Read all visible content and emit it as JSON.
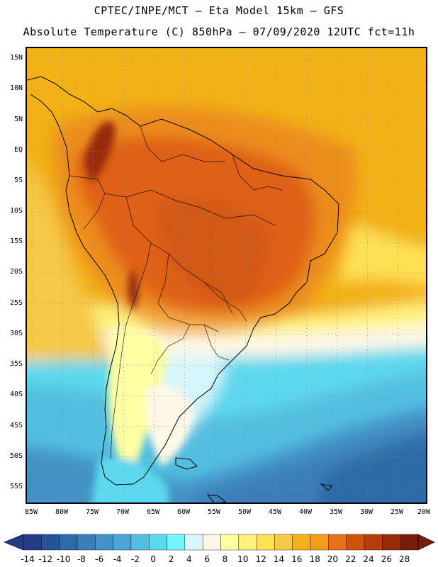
{
  "header": {
    "line1": "CPTEC/INPE/MCT –  Eta Model 15km – GFS",
    "line2": "Absolute Temperature (C) 850hPa – 07/09/2020 12UTC fct=11h"
  },
  "map": {
    "region": "South America",
    "variable": "Absolute Temperature (C) 850hPa",
    "lat_labels": [
      "15N",
      "10N",
      "5N",
      "EQ",
      "5S",
      "10S",
      "15S",
      "20S",
      "25S",
      "30S",
      "35S",
      "40S",
      "45S",
      "50S",
      "55S"
    ],
    "lon_labels": [
      "85W",
      "80W",
      "75W",
      "70W",
      "65W",
      "60W",
      "55W",
      "50W",
      "45W",
      "40W",
      "35W",
      "30W",
      "25W",
      "20W"
    ]
  },
  "colorbar": {
    "labels": [
      "-14",
      "-12",
      "-10",
      "-8",
      "-6",
      "-4",
      "-2",
      "0",
      "2",
      "4",
      "6",
      "8",
      "10",
      "12",
      "14",
      "16",
      "18",
      "20",
      "22",
      "24",
      "26",
      "28"
    ],
    "colors": [
      "#223a8a",
      "#27539a",
      "#2f6aa8",
      "#3a7ebb",
      "#4392c8",
      "#4aa5d6",
      "#52bfe0",
      "#5dd8ee",
      "#6ff6ff",
      "#d6f6fb",
      "#fff8e6",
      "#ffffa3",
      "#fff17a",
      "#ffe055",
      "#f5c846",
      "#f2b116",
      "#f39d1b",
      "#e9701f",
      "#d2510d",
      "#b63e0b",
      "#992b0a",
      "#7a1c0b"
    ],
    "under_color": "#223a8a",
    "over_color": "#7a1c0b"
  }
}
